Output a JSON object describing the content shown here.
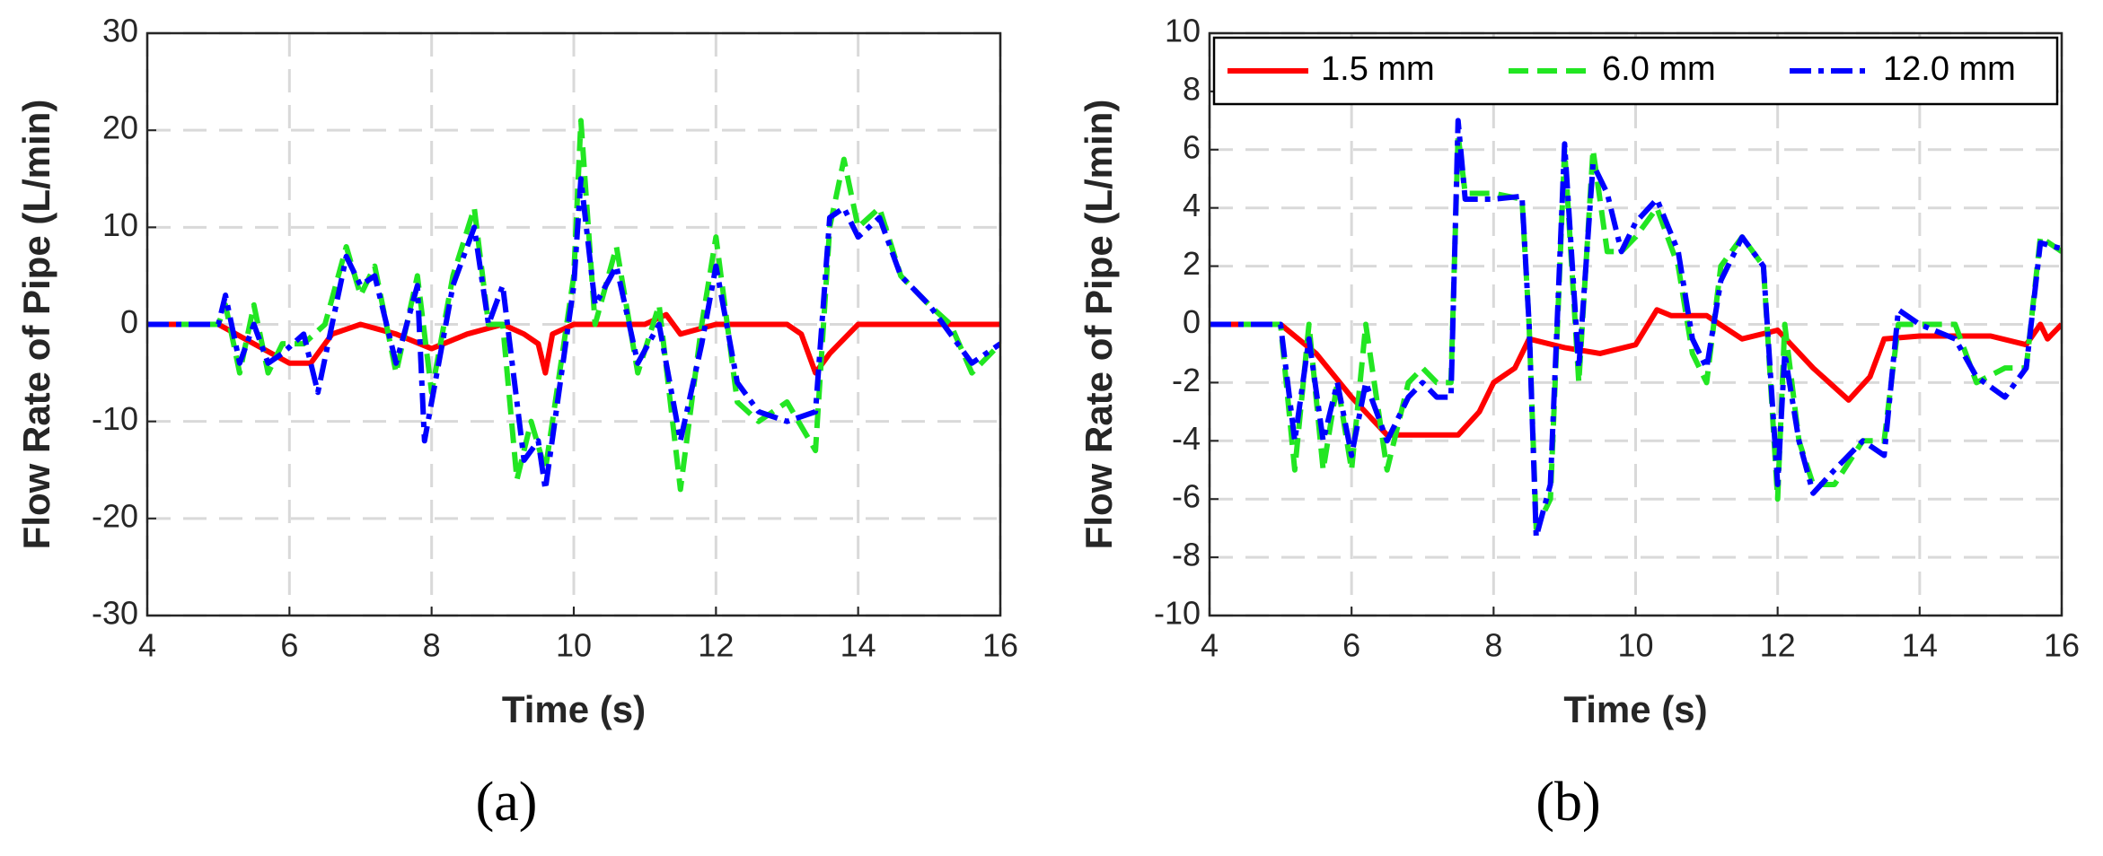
{
  "chart_data": [
    {
      "type": "line",
      "label": "(a)",
      "xlabel": "Time (s)",
      "ylabel": "Flow Rate of Pipe (L/min)",
      "xlim": [
        4,
        16
      ],
      "xticks": [
        4,
        6,
        8,
        10,
        12,
        14,
        16
      ],
      "ylim": [
        -30,
        30
      ],
      "yticks": [
        -30,
        -20,
        -10,
        0,
        10,
        20,
        30
      ],
      "grid": true,
      "series": [
        {
          "color": "#ff0000",
          "linestyle": "solid",
          "x": [
            4,
            5,
            5.5,
            6,
            6.3,
            6.6,
            7,
            7.5,
            8,
            8.5,
            9,
            9.3,
            9.5,
            9.6,
            9.7,
            10,
            11,
            11.3,
            11.4,
            11.5,
            12,
            13,
            13.2,
            13.4,
            13.6,
            14,
            16
          ],
          "values": [
            0,
            0,
            -2,
            -4,
            -4,
            -1,
            0,
            -1,
            -2.5,
            -1,
            0,
            -1,
            -2,
            -5,
            -1,
            0,
            0,
            1,
            0,
            -1,
            0,
            0,
            -1,
            -5,
            -3,
            0,
            0
          ]
        },
        {
          "color": "#22e622",
          "linestyle": "dashed",
          "x": [
            4,
            5,
            5.1,
            5.3,
            5.5,
            5.7,
            5.9,
            6.2,
            6.5,
            6.8,
            7,
            7.2,
            7.5,
            7.8,
            8,
            8.3,
            8.6,
            8.8,
            9,
            9.2,
            9.4,
            9.6,
            10,
            10.1,
            10.3,
            10.6,
            10.9,
            11.2,
            11.5,
            11.8,
            12,
            12.3,
            12.6,
            13,
            13.4,
            13.6,
            13.8,
            14,
            14.3,
            14.6,
            15,
            15.3,
            15.6,
            16
          ],
          "values": [
            0,
            0,
            2,
            -5,
            2,
            -5,
            -2,
            -2,
            0,
            8,
            3,
            6,
            -5,
            5,
            -7,
            5,
            12,
            0,
            0,
            -16,
            -10,
            -15,
            5,
            21,
            0,
            8,
            -5,
            2,
            -17,
            0,
            9,
            -8,
            -10,
            -8,
            -13,
            10,
            17,
            10,
            12,
            5,
            2,
            0,
            -5,
            -2
          ]
        },
        {
          "color": "#0000ff",
          "linestyle": "dashdot",
          "x": [
            4,
            5,
            5.1,
            5.3,
            5.5,
            5.7,
            5.9,
            6.2,
            6.4,
            6.8,
            7,
            7.2,
            7.5,
            7.8,
            7.9,
            8.3,
            8.6,
            8.8,
            9,
            9.3,
            9.5,
            9.6,
            10,
            10.1,
            10.3,
            10.6,
            10.9,
            11.2,
            11.5,
            11.8,
            12,
            12.3,
            12.6,
            13,
            13.4,
            13.6,
            13.8,
            14,
            14.3,
            14.6,
            15,
            15.3,
            15.6,
            16
          ],
          "values": [
            0,
            0,
            3,
            -4,
            0,
            -4,
            -3,
            -1,
            -7,
            7,
            4,
            5,
            -4,
            4,
            -12,
            4,
            10,
            0,
            4,
            -14,
            -12,
            -17,
            4,
            15,
            2,
            6,
            -4,
            0,
            -12,
            -2,
            6,
            -6,
            -9,
            -10,
            -9,
            11,
            12,
            9,
            11,
            5,
            2,
            -1,
            -4,
            -2
          ]
        }
      ]
    },
    {
      "type": "line",
      "label": "(b)",
      "xlabel": "Time (s)",
      "ylabel": "Flow Rate of Pipe (L/min)",
      "xlim": [
        4,
        16
      ],
      "xticks": [
        4,
        6,
        8,
        10,
        12,
        14,
        16
      ],
      "ylim": [
        -10,
        10
      ],
      "yticks": [
        -10,
        -8,
        -6,
        -4,
        -2,
        0,
        2,
        4,
        6,
        8,
        10
      ],
      "grid": true,
      "legend": "top",
      "series": [
        {
          "name": "1.5 mm",
          "color": "#ff0000",
          "linestyle": "solid",
          "x": [
            4,
            5,
            5.5,
            6,
            6.5,
            7,
            7.5,
            7.8,
            8,
            8.3,
            8.5,
            9,
            9.5,
            10,
            10.3,
            10.5,
            11,
            11.5,
            12,
            12.5,
            13,
            13.3,
            13.5,
            14,
            15,
            15.5,
            15.7,
            15.8,
            16
          ],
          "values": [
            0,
            0,
            -1,
            -2.5,
            -3.8,
            -3.8,
            -3.8,
            -3,
            -2,
            -1.5,
            -0.5,
            -0.8,
            -1,
            -0.7,
            0.5,
            0.3,
            0.3,
            -0.5,
            -0.2,
            -1.5,
            -2.6,
            -1.8,
            -0.5,
            -0.4,
            -0.4,
            -0.7,
            0,
            -0.5,
            0
          ]
        },
        {
          "name": "6.0 mm",
          "color": "#22e622",
          "linestyle": "dashed",
          "x": [
            4,
            5,
            5.2,
            5.4,
            5.6,
            5.8,
            6,
            6.2,
            6.5,
            6.8,
            7,
            7.2,
            7.4,
            7.5,
            7.6,
            8,
            8.4,
            8.5,
            8.6,
            8.8,
            9,
            9.2,
            9.4,
            9.6,
            9.8,
            10,
            10.3,
            10.6,
            10.8,
            11,
            11.2,
            11.5,
            11.8,
            12,
            12.1,
            12.3,
            12.5,
            12.8,
            13.2,
            13.5,
            13.7,
            14,
            14.5,
            14.8,
            15.2,
            15.5,
            15.7,
            16
          ],
          "values": [
            0,
            0,
            -5,
            0,
            -5,
            -2,
            -5,
            0,
            -5,
            -2,
            -1.5,
            -2,
            -2,
            6.5,
            4.5,
            4.5,
            4.3,
            0,
            -7,
            -6,
            6,
            -2,
            6,
            2.5,
            2.5,
            3,
            4,
            2,
            -1,
            -2,
            2,
            3,
            2,
            -6,
            0,
            -4,
            -5.5,
            -5.5,
            -4,
            -4,
            0,
            0,
            0,
            -2,
            -1.5,
            -1.5,
            3,
            2.5
          ]
        },
        {
          "name": "12.0 mm",
          "color": "#0000ff",
          "linestyle": "dashdot",
          "x": [
            4,
            5,
            5.2,
            5.4,
            5.6,
            5.8,
            6,
            6.2,
            6.5,
            6.8,
            7,
            7.2,
            7.4,
            7.5,
            7.6,
            8,
            8.4,
            8.5,
            8.6,
            8.8,
            9,
            9.2,
            9.4,
            9.6,
            9.8,
            10,
            10.3,
            10.6,
            10.8,
            11,
            11.2,
            11.5,
            11.8,
            12,
            12.1,
            12.3,
            12.5,
            12.8,
            13.2,
            13.5,
            13.7,
            14,
            14.5,
            14.8,
            15.2,
            15.5,
            15.7,
            16
          ],
          "values": [
            0,
            0,
            -4,
            -0.5,
            -4,
            -2,
            -4.5,
            -2,
            -4,
            -2.5,
            -2,
            -2.5,
            -2.5,
            7,
            4.3,
            4.3,
            4.4,
            0,
            -7.3,
            -5.5,
            6.2,
            -1.5,
            5.5,
            4.5,
            2.5,
            3.5,
            4.3,
            2.5,
            -0.5,
            -1.5,
            1.5,
            3,
            2,
            -5.5,
            -1,
            -4,
            -5.8,
            -5,
            -4,
            -4.5,
            0.5,
            0,
            -0.5,
            -1.8,
            -2.5,
            -1.5,
            2.8,
            2.6
          ]
        }
      ]
    }
  ]
}
